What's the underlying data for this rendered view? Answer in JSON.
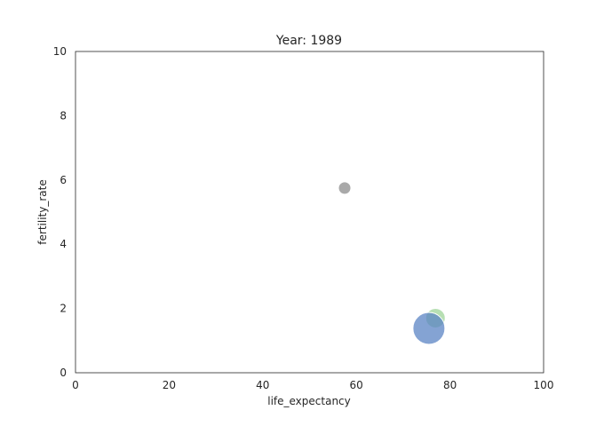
{
  "chart_data": {
    "type": "scatter",
    "title": "Year: 1989",
    "xlabel": "life_expectancy",
    "ylabel": "fertility_rate",
    "xlim": [
      0,
      100
    ],
    "ylim": [
      0,
      10
    ],
    "xticks": [
      0,
      20,
      40,
      60,
      80,
      100
    ],
    "yticks": [
      0,
      2,
      4,
      6,
      8,
      10
    ],
    "grid": false,
    "legend": "none",
    "points": [
      {
        "x": 57.5,
        "y": 5.75,
        "size": 7,
        "color": "#8c8c8c"
      },
      {
        "x": 76.9,
        "y": 1.7,
        "size": 11,
        "color": "#9fd49a"
      },
      {
        "x": 75.5,
        "y": 1.38,
        "size": 18,
        "color": "#5b84c4"
      }
    ]
  }
}
